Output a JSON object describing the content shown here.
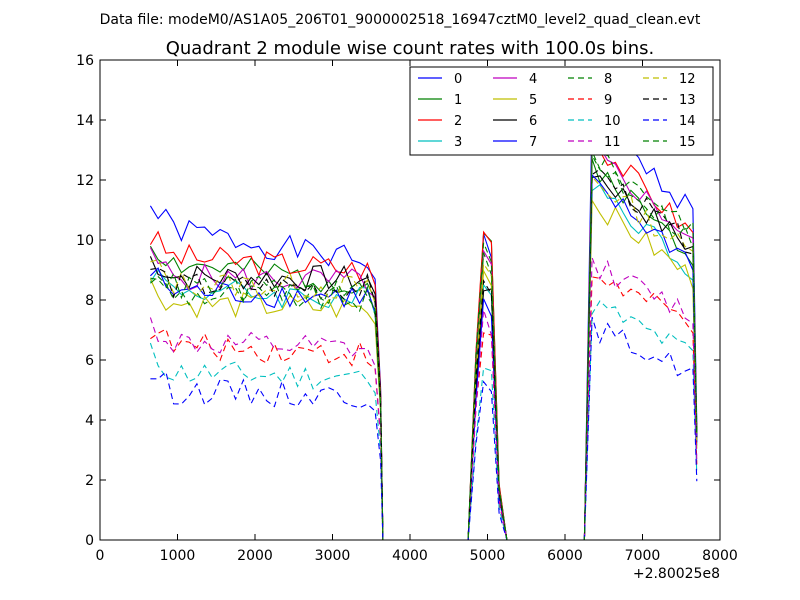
{
  "header": {
    "suptitle": "Data file: modeM0/AS1A05_206T01_9000002518_16947cztM0_level2_quad_clean.evt"
  },
  "chart_data": {
    "type": "line",
    "title": "Quadrant 2 module wise count rates with 100.0s bins.",
    "xlabel": "",
    "ylabel": "",
    "x_offset_label": "+2.80025e8",
    "xlim": [
      0,
      8000
    ],
    "ylim": [
      0,
      16
    ],
    "xticks": [
      "0",
      "1000",
      "2000",
      "3000",
      "4000",
      "5000",
      "6000",
      "7000",
      "8000"
    ],
    "yticks": [
      "0",
      "2",
      "4",
      "6",
      "8",
      "10",
      "12",
      "14",
      "16"
    ],
    "grid": false,
    "legend_position": "top-right",
    "legend_columns": 4,
    "segments": [
      {
        "start": 650,
        "step": 100,
        "count": 30
      },
      {
        "start": 3650,
        "step": 100,
        "count": 12,
        "zero": true
      },
      {
        "start": 4750,
        "step": 100,
        "count": 5,
        "peak": true
      },
      {
        "start": 5250,
        "step": 100,
        "count": 10,
        "zero": true
      },
      {
        "start": 6250,
        "step": 100,
        "count": 15
      }
    ],
    "series": [
      {
        "name": "0",
        "color": "#0000ff",
        "style": "solid",
        "seg1_level": 10.5,
        "seg1_end": 9.2,
        "peak": 10.0,
        "seg3_start": 14.2,
        "seg3_end": 11.0,
        "seed": 1
      },
      {
        "name": "1",
        "color": "#008000",
        "style": "solid",
        "seg1_level": 9.3,
        "seg1_end": 8.5,
        "peak": 10.2,
        "seg3_start": 12.8,
        "seg3_end": 9.5,
        "seed": 2
      },
      {
        "name": "2",
        "color": "#ff0000",
        "style": "solid",
        "seg1_level": 9.5,
        "seg1_end": 9.0,
        "peak": 10.4,
        "seg3_start": 13.6,
        "seg3_end": 10.2,
        "seed": 3
      },
      {
        "name": "3",
        "color": "#00bfbf",
        "style": "solid",
        "seg1_level": 8.4,
        "seg1_end": 8.0,
        "peak": 8.8,
        "seg3_start": 12.2,
        "seg3_end": 9.0,
        "seed": 4
      },
      {
        "name": "4",
        "color": "#bf00bf",
        "style": "solid",
        "seg1_level": 8.8,
        "seg1_end": 8.6,
        "peak": 9.5,
        "seg3_start": 13.2,
        "seg3_end": 10.0,
        "seed": 5
      },
      {
        "name": "5",
        "color": "#bfbf00",
        "style": "solid",
        "seg1_level": 7.9,
        "seg1_end": 7.7,
        "peak": 9.0,
        "seg3_start": 11.5,
        "seg3_end": 8.7,
        "seed": 6
      },
      {
        "name": "6",
        "color": "#000000",
        "style": "solid",
        "seg1_level": 8.8,
        "seg1_end": 8.7,
        "peak": 8.5,
        "seg3_start": 12.5,
        "seg3_end": 9.7,
        "seed": 7
      },
      {
        "name": "7",
        "color": "#0000ff",
        "style": "solid",
        "seg1_level": 8.3,
        "seg1_end": 8.1,
        "peak": 7.8,
        "seg3_start": 12.0,
        "seg3_end": 9.3,
        "seed": 8
      },
      {
        "name": "8",
        "color": "#008000",
        "style": "dashed",
        "seg1_level": 8.2,
        "seg1_end": 8.0,
        "peak": 9.5,
        "seg3_start": 13.0,
        "seg3_end": 10.5,
        "seed": 9
      },
      {
        "name": "9",
        "color": "#ff0000",
        "style": "dashed",
        "seg1_level": 6.5,
        "seg1_end": 6.2,
        "peak": 7.0,
        "seg3_start": 9.0,
        "seg3_end": 7.2,
        "seed": 10
      },
      {
        "name": "10",
        "color": "#00bfbf",
        "style": "dashed",
        "seg1_level": 5.6,
        "seg1_end": 5.4,
        "peak": 6.0,
        "seg3_start": 8.0,
        "seg3_end": 6.2,
        "seed": 11
      },
      {
        "name": "11",
        "color": "#bf00bf",
        "style": "dashed",
        "seg1_level": 6.6,
        "seg1_end": 6.3,
        "peak": 7.5,
        "seg3_start": 9.3,
        "seg3_end": 7.5,
        "seed": 12
      },
      {
        "name": "12",
        "color": "#bfbf00",
        "style": "dashed",
        "seg1_level": 8.6,
        "seg1_end": 8.4,
        "peak": 9.2,
        "seg3_start": 12.3,
        "seg3_end": 9.5,
        "seed": 13
      },
      {
        "name": "13",
        "color": "#000000",
        "style": "dashed",
        "seg1_level": 8.5,
        "seg1_end": 8.4,
        "peak": 8.8,
        "seg3_start": 12.6,
        "seg3_end": 9.8,
        "seed": 14
      },
      {
        "name": "14",
        "color": "#0000ff",
        "style": "dashed",
        "seg1_level": 5.0,
        "seg1_end": 4.8,
        "peak": 5.0,
        "seg3_start": 7.2,
        "seg3_end": 5.6,
        "seed": 15
      },
      {
        "name": "15",
        "color": "#008000",
        "style": "dashed",
        "seg1_level": 8.5,
        "seg1_end": 8.2,
        "peak": 9.8,
        "seg3_start": 12.9,
        "seg3_end": 10.0,
        "seed": 16
      }
    ]
  }
}
